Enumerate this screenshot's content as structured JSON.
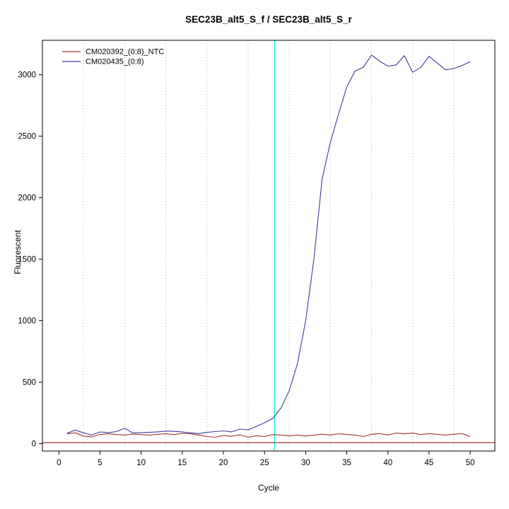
{
  "chart_data": {
    "type": "line",
    "title": "SEC23B_alt5_S_f / SEC23B_alt5_S_r",
    "xlabel": "Cycle",
    "ylabel": "Fluorescent",
    "xlim": [
      -2,
      53
    ],
    "ylim": [
      -60,
      3280
    ],
    "x_ticks": [
      0,
      5,
      10,
      15,
      20,
      25,
      30,
      35,
      40,
      45,
      50
    ],
    "y_ticks": [
      0,
      500,
      1000,
      1500,
      2000,
      2500,
      3000
    ],
    "grid_x_dotted": [
      3,
      8,
      13,
      18,
      23,
      28,
      33,
      38,
      43,
      48
    ],
    "grid_color": "#b3b3b3",
    "threshold_y": 8,
    "threshold_color": "#8b0000",
    "ct_marker_x": 26.2,
    "ct_marker_color": "#00eeee",
    "legend_position": "top-left",
    "x": [
      1,
      2,
      3,
      4,
      5,
      6,
      7,
      8,
      9,
      10,
      11,
      12,
      13,
      14,
      15,
      16,
      17,
      18,
      19,
      20,
      21,
      22,
      23,
      24,
      25,
      26,
      27,
      28,
      29,
      30,
      31,
      32,
      33,
      34,
      35,
      36,
      37,
      38,
      39,
      40,
      41,
      42,
      43,
      44,
      45,
      46,
      47,
      48,
      49,
      50
    ],
    "series": [
      {
        "name": "CM020392_(0:8)_NTC",
        "color": "#a03430",
        "values": [
          80,
          88,
          62,
          55,
          75,
          80,
          74,
          70,
          78,
          74,
          70,
          76,
          80,
          74,
          84,
          80,
          70,
          58,
          52,
          66,
          60,
          72,
          52,
          64,
          58,
          74,
          70,
          64,
          70,
          62,
          70,
          76,
          70,
          80,
          74,
          70,
          58,
          76,
          82,
          70,
          86,
          80,
          86,
          74,
          82,
          76,
          70,
          76,
          82,
          58
        ]
      },
      {
        "name": "CM020435_(0:8)",
        "color": "#3a3a9e",
        "values": [
          85,
          110,
          88,
          70,
          95,
          90,
          98,
          125,
          86,
          90,
          92,
          96,
          102,
          100,
          95,
          88,
          82,
          92,
          98,
          104,
          96,
          118,
          112,
          140,
          170,
          205,
          290,
          430,
          650,
          1000,
          1500,
          2150,
          2450,
          2680,
          2900,
          3030,
          3060,
          3160,
          3110,
          3070,
          3080,
          3155,
          3020,
          3060,
          3150,
          3095,
          3040,
          3050,
          3075,
          3105
        ]
      }
    ]
  }
}
